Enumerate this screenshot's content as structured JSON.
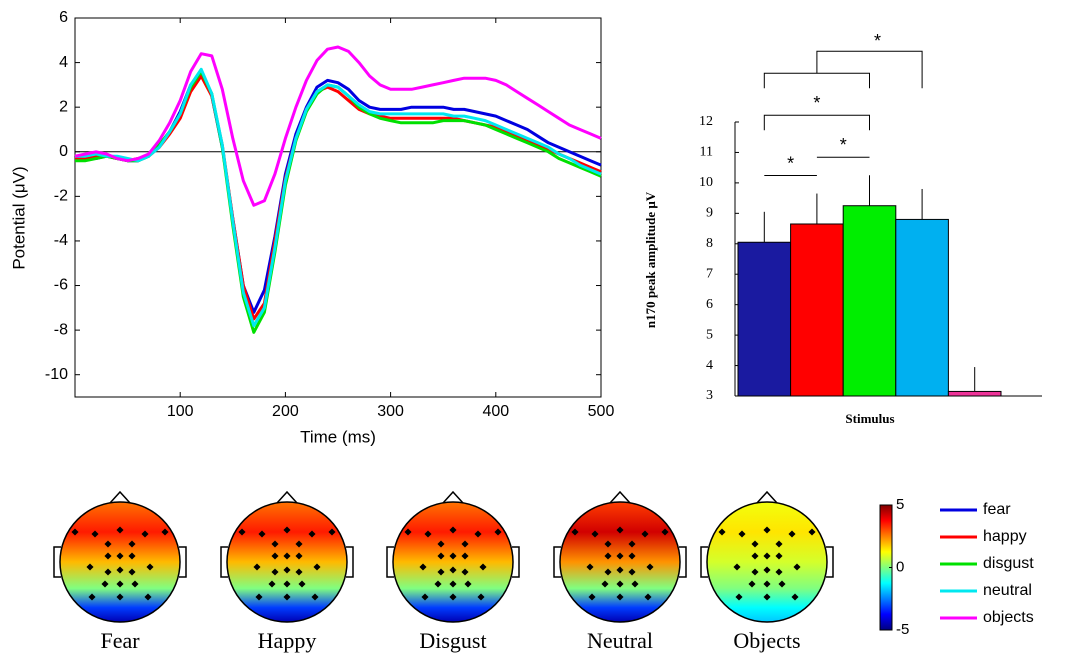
{
  "chart_data": [
    {
      "type": "line",
      "xlabel": "Time (ms)",
      "ylabel": "Potential (μV)",
      "x": [
        0,
        10,
        20,
        30,
        40,
        50,
        60,
        70,
        80,
        90,
        100,
        110,
        120,
        130,
        140,
        150,
        160,
        170,
        180,
        190,
        200,
        210,
        220,
        230,
        240,
        250,
        260,
        270,
        280,
        290,
        300,
        310,
        320,
        330,
        340,
        350,
        360,
        370,
        380,
        390,
        400,
        410,
        420,
        430,
        440,
        450,
        460,
        470,
        480,
        490,
        500
      ],
      "series": [
        {
          "name": "fear",
          "color": "#0000e0",
          "values": [
            -0.2,
            -0.2,
            -0.3,
            -0.2,
            -0.3,
            -0.4,
            -0.4,
            -0.2,
            0.3,
            0.9,
            1.8,
            3.0,
            3.6,
            2.5,
            0.2,
            -3.0,
            -6.0,
            -7.2,
            -6.2,
            -3.8,
            -1.0,
            0.8,
            2.0,
            2.9,
            3.2,
            3.1,
            2.8,
            2.3,
            2.0,
            1.9,
            1.9,
            1.9,
            2.0,
            2.0,
            2.0,
            2.0,
            1.9,
            1.9,
            1.8,
            1.7,
            1.6,
            1.4,
            1.2,
            1.0,
            0.7,
            0.4,
            0.2,
            0.0,
            -0.2,
            -0.4,
            -0.6
          ]
        },
        {
          "name": "happy",
          "color": "#ff0000",
          "values": [
            -0.3,
            -0.3,
            -0.2,
            -0.2,
            -0.3,
            -0.4,
            -0.3,
            -0.2,
            0.2,
            0.8,
            1.5,
            2.7,
            3.4,
            2.5,
            0.3,
            -3.0,
            -6.0,
            -7.5,
            -6.8,
            -4.0,
            -1.2,
            0.6,
            1.9,
            2.7,
            2.9,
            2.7,
            2.3,
            1.9,
            1.7,
            1.6,
            1.5,
            1.5,
            1.5,
            1.5,
            1.5,
            1.5,
            1.5,
            1.4,
            1.3,
            1.2,
            1.1,
            0.9,
            0.7,
            0.5,
            0.3,
            0.1,
            -0.1,
            -0.3,
            -0.5,
            -0.7,
            -0.9
          ]
        },
        {
          "name": "disgust",
          "color": "#00e000",
          "values": [
            -0.4,
            -0.4,
            -0.3,
            -0.2,
            -0.3,
            -0.4,
            -0.4,
            -0.2,
            0.3,
            0.9,
            1.7,
            2.9,
            3.6,
            2.6,
            0.2,
            -3.3,
            -6.5,
            -8.1,
            -7.2,
            -4.5,
            -1.5,
            0.5,
            1.8,
            2.6,
            3.0,
            2.9,
            2.5,
            2.0,
            1.7,
            1.5,
            1.4,
            1.3,
            1.3,
            1.3,
            1.3,
            1.4,
            1.4,
            1.4,
            1.3,
            1.2,
            1.0,
            0.8,
            0.6,
            0.4,
            0.2,
            0.0,
            -0.3,
            -0.5,
            -0.7,
            -0.9,
            -1.1
          ]
        },
        {
          "name": "neutral",
          "color": "#00e8f0",
          "values": [
            -0.2,
            -0.2,
            -0.1,
            -0.2,
            -0.2,
            -0.3,
            -0.4,
            -0.2,
            0.2,
            0.9,
            1.7,
            3.0,
            3.7,
            2.6,
            0.3,
            -3.1,
            -6.3,
            -7.8,
            -7.0,
            -4.3,
            -1.3,
            0.6,
            1.9,
            2.7,
            3.0,
            2.9,
            2.5,
            2.1,
            1.8,
            1.7,
            1.7,
            1.7,
            1.7,
            1.7,
            1.7,
            1.7,
            1.6,
            1.6,
            1.5,
            1.4,
            1.2,
            1.0,
            0.8,
            0.6,
            0.4,
            0.2,
            -0.1,
            -0.3,
            -0.6,
            -0.8,
            -1.0
          ]
        },
        {
          "name": "objects",
          "color": "#ff00ff",
          "values": [
            -0.2,
            -0.1,
            0.0,
            -0.1,
            -0.3,
            -0.4,
            -0.3,
            -0.1,
            0.5,
            1.3,
            2.3,
            3.6,
            4.4,
            4.3,
            2.8,
            0.6,
            -1.3,
            -2.4,
            -2.2,
            -1.0,
            0.6,
            2.0,
            3.2,
            4.1,
            4.6,
            4.7,
            4.5,
            4.0,
            3.4,
            3.0,
            2.8,
            2.8,
            2.8,
            2.9,
            3.0,
            3.1,
            3.2,
            3.3,
            3.3,
            3.3,
            3.2,
            3.0,
            2.7,
            2.4,
            2.1,
            1.8,
            1.5,
            1.2,
            1.0,
            0.8,
            0.6
          ]
        }
      ],
      "xlim": [
        0,
        500
      ],
      "xticks": [
        100,
        200,
        300,
        400,
        500
      ],
      "ylim": [
        -11,
        6
      ],
      "yticks": [
        -10,
        -8,
        -6,
        -4,
        -2,
        0,
        2,
        4,
        6
      ],
      "zero_line": true
    },
    {
      "type": "bar",
      "xlabel": "Stimulus",
      "ylabel": "n170 peak amplitude μV",
      "categories": [
        null,
        null,
        null,
        null,
        null
      ],
      "values": [
        8.05,
        8.65,
        9.25,
        8.8,
        3.15
      ],
      "errors": [
        1.0,
        1.0,
        1.0,
        1.0,
        0.8
      ],
      "colors": [
        "#1a1aa0",
        "#ff0000",
        "#00ee00",
        "#00b0f0",
        "#ee3399"
      ],
      "ylim": [
        3,
        12
      ],
      "yticks": [
        3,
        4,
        5,
        6,
        7,
        8,
        9,
        10,
        11,
        12
      ],
      "annotations": [
        {
          "text": "*",
          "from": 0,
          "to": 1
        },
        {
          "text": "*",
          "from": 1,
          "to": 2
        },
        {
          "text": "*",
          "from": 0,
          "to": 2
        },
        {
          "text": "*",
          "from": [
            0,
            2
          ],
          "to": 3
        }
      ]
    },
    {
      "type": "topomap",
      "maps": [
        {
          "label": "Fear",
          "peak": 3.5,
          "trough": -4.5
        },
        {
          "label": "Happy",
          "peak": 3.5,
          "trough": -4.5
        },
        {
          "label": "Disgust",
          "peak": 3.5,
          "trough": -4.5
        },
        {
          "label": "Neutral",
          "peak": 4.2,
          "trough": -4.5
        },
        {
          "label": "Objects",
          "peak": 1.5,
          "trough": -1.8
        }
      ],
      "clim": [
        -5,
        5
      ],
      "cticks": [
        -5,
        0,
        5
      ]
    }
  ]
}
